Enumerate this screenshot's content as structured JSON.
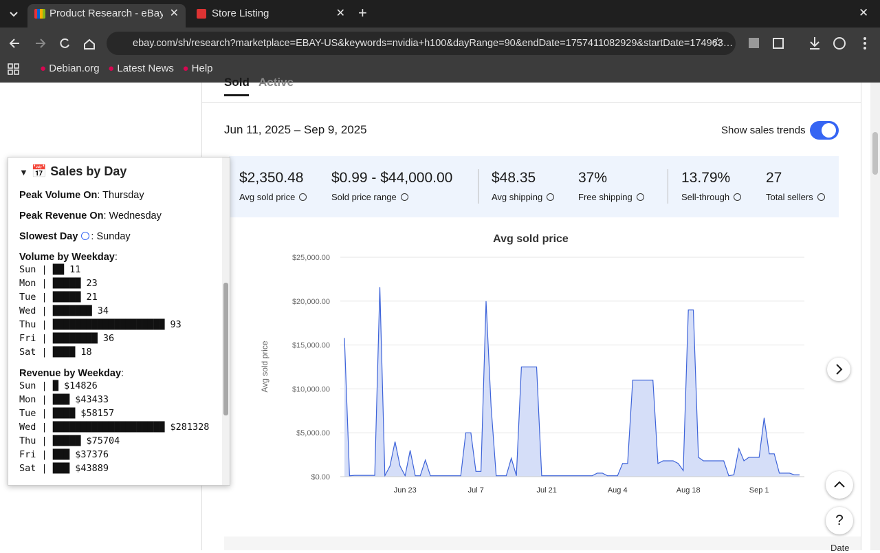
{
  "browser": {
    "tabs": [
      "Product Research - eBay",
      "Store Listing"
    ],
    "url": "ebay.com/sh/research?marketplace=EBAY-US&keywords=nvidia+h100&dayRange=90&endDate=1757411082929&startDate=174963…",
    "bookmarks": [
      "Debian.org",
      "Latest News",
      "Help"
    ]
  },
  "page": {
    "result_tabs": [
      "Sold",
      "Active"
    ],
    "date_range": "Jun 11, 2025 – Sep 9, 2025",
    "toggle_label": "Show sales trends",
    "stats": [
      {
        "value": "$2,350.48",
        "label": "Avg sold price"
      },
      {
        "value": "$0.99 - $44,000.00",
        "label": "Sold price range"
      },
      {
        "value": "$48.35",
        "label": "Avg shipping"
      },
      {
        "value": "37%",
        "label": "Free shipping"
      },
      {
        "value": "13.79%",
        "label": "Sell-through"
      },
      {
        "value": "27",
        "label": "Total sellers"
      }
    ],
    "table_header": "Date"
  },
  "chart_data": {
    "type": "area",
    "title": "Avg sold price",
    "y_label": "Avg sold price",
    "color": "#3d63d9",
    "fill": "#d5def8",
    "categories": [
      null,
      null,
      null,
      null,
      null,
      null,
      null,
      null,
      null,
      null,
      null,
      null,
      "Jun 23",
      null,
      null,
      null,
      null,
      null,
      null,
      null,
      null,
      null,
      null,
      null,
      null,
      null,
      "Jul 7",
      null,
      null,
      null,
      null,
      null,
      null,
      null,
      null,
      null,
      null,
      null,
      null,
      null,
      "Jul 21",
      null,
      null,
      null,
      null,
      null,
      null,
      null,
      null,
      null,
      null,
      null,
      null,
      null,
      "Aug 4",
      null,
      null,
      null,
      null,
      null,
      null,
      null,
      null,
      null,
      null,
      null,
      null,
      null,
      "Aug 18",
      null,
      null,
      null,
      null,
      null,
      null,
      null,
      null,
      null,
      null,
      null,
      null,
      null,
      "Sep 1",
      null,
      null,
      null,
      null,
      null,
      null,
      null,
      null
    ],
    "values": [
      15800,
      100,
      150,
      150,
      150,
      150,
      150,
      21600,
      100,
      1200,
      4000,
      1200,
      100,
      3000,
      100,
      100,
      1900,
      100,
      100,
      100,
      100,
      100,
      100,
      100,
      5000,
      5000,
      600,
      600,
      20000,
      8000,
      100,
      100,
      100,
      2100,
      100,
      12500,
      12500,
      12500,
      12500,
      100,
      100,
      100,
      100,
      100,
      100,
      100,
      100,
      100,
      100,
      100,
      400,
      400,
      100,
      100,
      100,
      1500,
      1500,
      11000,
      11000,
      11000,
      11000,
      11000,
      1500,
      1800,
      1800,
      1800,
      1500,
      700,
      19000,
      19000,
      2200,
      1800,
      1800,
      1800,
      1800,
      1800,
      100,
      200,
      3200,
      1800,
      2200,
      2200,
      2200,
      6700,
      2600,
      2600,
      400,
      400,
      400,
      200,
      200
    ],
    "ylim": [
      0,
      25000
    ],
    "yticks": [
      {
        "value": 0,
        "label": "$0.00"
      },
      {
        "value": 5000,
        "label": "$5,000.00"
      },
      {
        "value": 10000,
        "label": "$10,000.00"
      },
      {
        "value": 15000,
        "label": "$15,000.00"
      },
      {
        "value": 20000,
        "label": "$20,000.00"
      },
      {
        "value": 25000,
        "label": "$25,000.00"
      }
    ],
    "grid": true
  },
  "sidebar": {
    "title": "📅 Sales by Day",
    "facts": [
      {
        "label": "Peak Volume On",
        "value": ": Thursday"
      },
      {
        "label": "Peak Revenue On",
        "value": ": Wednesday"
      },
      {
        "label": "Slowest Day",
        "value": ": Sunday"
      }
    ],
    "volume_title": "Volume by Weekday",
    "volume_lines": [
      "Sun | ██ 11",
      "Mon | █████ 23",
      "Tue | █████ 21",
      "Wed | ███████ 34",
      "Thu | ████████████████████ 93",
      "Fri | ████████ 36",
      "Sat | ████ 18"
    ],
    "revenue_title": "Revenue by Weekday",
    "revenue_lines": [
      "Sun | █ $14826",
      "Mon | ███ $43433",
      "Tue | ████ $58157",
      "Wed | ████████████████████ $281328",
      "Thu | █████ $75704",
      "Fri | ███ $37376",
      "Sat | ███ $43889"
    ],
    "colon": ":"
  }
}
